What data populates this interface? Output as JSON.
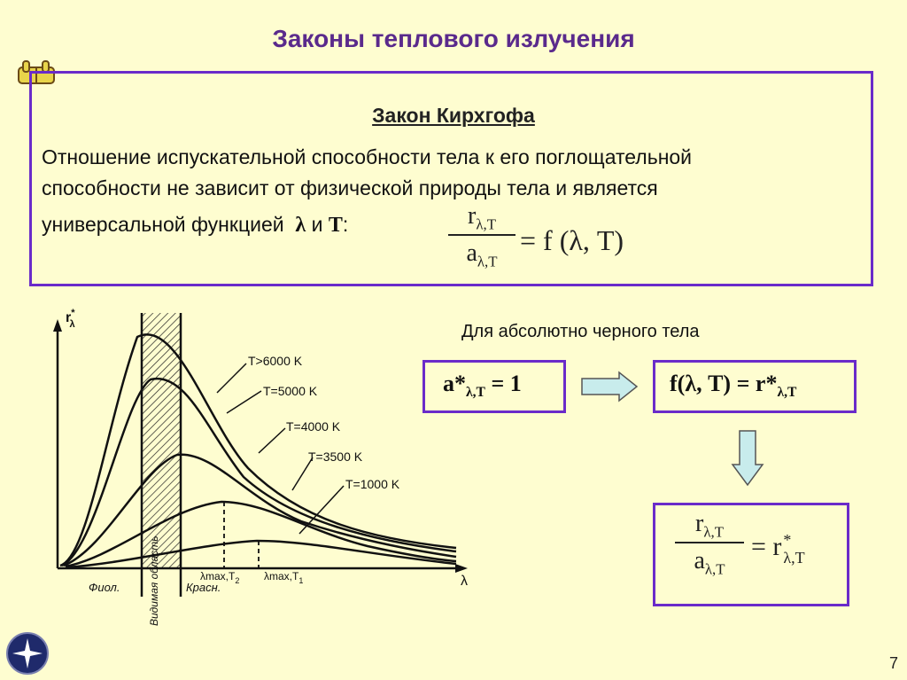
{
  "title": "Законы теплового излучения",
  "law": {
    "title": "Закон Кирхгофа",
    "text_line1": "Отношение испускательной способности тела к его поглощательной",
    "text_line2": "способности не зависит от физической природы тела и является",
    "text_line3_prefix": "универсальной функцией",
    "var_lambda": "λ",
    "conj": "и",
    "var_T": "T",
    "colon": ":",
    "formula_num": "r",
    "formula_num_sub": "λ,T",
    "formula_den": "a",
    "formula_den_sub": "λ,T",
    "formula_rhs": "= f (λ, T)"
  },
  "black_body": {
    "caption": "Для абсолютно черного тела",
    "box1_main": "a*",
    "box1_sub": "λ,T",
    "box1_rhs": " = 1",
    "box2_main": "f(λ, T) = r*",
    "box2_sub": "λ,T",
    "box3_num": "r",
    "box3_num_sub": "λ,T",
    "box3_den": "a",
    "box3_den_sub": "λ,T",
    "box3_rhs": "= r",
    "box3_rhs_sup": "*",
    "box3_rhs_sub": "λ,T",
    "arrow_color": "#c8ecec"
  },
  "graph": {
    "y_axis_label": "r",
    "y_axis_sub": "λ",
    "y_axis_sup": "*",
    "x_axis_label": "λ",
    "curve_labels": [
      "T>6000 K",
      "T=5000 K",
      "T=4000 K",
      "T=3500 K",
      "T=1000 K"
    ],
    "lambda_max_1": "λmax,T",
    "lambda_max_1_sub": "1",
    "lambda_max_2": "λmax,T",
    "lambda_max_2_sub": "2",
    "region_violet": "Фиол.",
    "region_visible": "Видимая область",
    "region_red": "Красн."
  },
  "page_number": "7",
  "colors": {
    "background": "#fefdd0",
    "frame": "#6a2bc9",
    "title": "#5a2a8c"
  }
}
